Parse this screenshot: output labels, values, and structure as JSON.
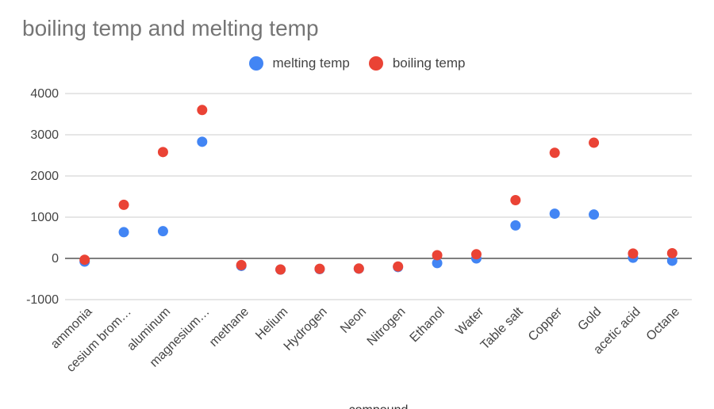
{
  "chart_data": {
    "type": "scatter",
    "title": "boiling temp and melting temp",
    "xlabel": "compound",
    "ylabel": "",
    "ylim": [
      -1000,
      4000
    ],
    "yticks": [
      4000,
      3000,
      2000,
      1000,
      0,
      -1000
    ],
    "ytick_labels": [
      "4000",
      "3000",
      "2000",
      "1000",
      "0",
      "-1000"
    ],
    "legend_position": "top",
    "categories": [
      "ammonia",
      "cesium brom…",
      "aluminum",
      "magnesium…",
      "methane",
      "Helium",
      "Hydrogen",
      "Neon",
      "Nitrogen",
      "Ethanol",
      "Water",
      "Table salt",
      "Copper",
      "Gold",
      "acetic acid",
      "Octane"
    ],
    "series": [
      {
        "name": "melting temp",
        "color": "#4285f4",
        "values": [
          -78,
          636,
          660,
          2830,
          -182,
          -272,
          -259,
          -249,
          -210,
          -114,
          0,
          801,
          1085,
          1064,
          17,
          -57
        ]
      },
      {
        "name": "boiling temp",
        "color": "#ea4335",
        "values": [
          -33,
          1300,
          2580,
          3600,
          -162,
          -269,
          -253,
          -246,
          -196,
          78,
          100,
          1413,
          2562,
          2807,
          118,
          126
        ]
      }
    ]
  }
}
